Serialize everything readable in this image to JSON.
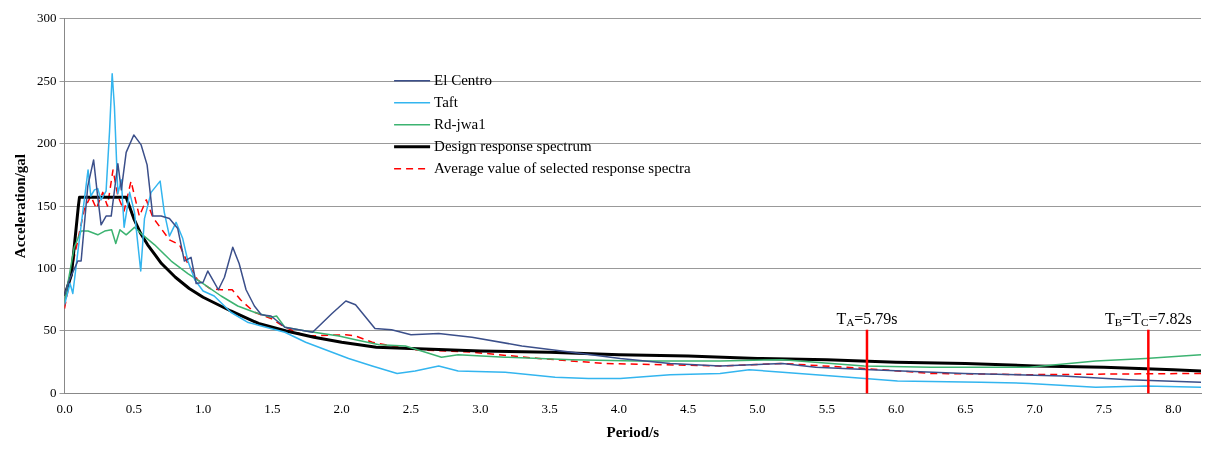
{
  "chart_data": {
    "type": "line",
    "xlabel": "Period/s",
    "ylabel": "Acceleration/gal",
    "xlim": [
      0,
      8.2
    ],
    "ylim": [
      0,
      300
    ],
    "xticks": [
      {
        "value": 0,
        "label": "0.0"
      },
      {
        "value": 0.5,
        "label": "0.5"
      },
      {
        "value": 1,
        "label": "1.0"
      },
      {
        "value": 1.5,
        "label": "1.5"
      },
      {
        "value": 2,
        "label": "2.0"
      },
      {
        "value": 2.5,
        "label": "2.5"
      },
      {
        "value": 3,
        "label": "3.0"
      },
      {
        "value": 3.5,
        "label": "3.5"
      },
      {
        "value": 4,
        "label": "4.0"
      },
      {
        "value": 4.5,
        "label": "4.5"
      },
      {
        "value": 5,
        "label": "5.0"
      },
      {
        "value": 5.5,
        "label": "5.5"
      },
      {
        "value": 6,
        "label": "6.0"
      },
      {
        "value": 6.5,
        "label": "6.5"
      },
      {
        "value": 7,
        "label": "7.0"
      },
      {
        "value": 7.5,
        "label": "7.5"
      },
      {
        "value": 8,
        "label": "8.0"
      }
    ],
    "yticks": [
      0,
      50,
      100,
      150,
      200,
      250,
      300
    ],
    "grid": "y",
    "legend": "top",
    "marker": "none",
    "series": [
      {
        "name": "El Centro",
        "color": "#3b4f8a",
        "line_style": "solid",
        "x": [
          0,
          0.036,
          0.096,
          0.12,
          0.168,
          0.21,
          0.236,
          0.264,
          0.3,
          0.337,
          0.385,
          0.41,
          0.445,
          0.5,
          0.553,
          0.596,
          0.637,
          0.697,
          0.757,
          0.817,
          0.865,
          0.913,
          0.95,
          1.0,
          1.034,
          1.07,
          1.11,
          1.154,
          1.214,
          1.26,
          1.31,
          1.37,
          1.42,
          1.49,
          1.59,
          1.79,
          1.93,
          2.03,
          2.1,
          2.24,
          2.36,
          2.5,
          2.7,
          2.94,
          3.3,
          3.66,
          4.01,
          4.37,
          4.73,
          5.18,
          5.42,
          5.82,
          6.49,
          7.2,
          7.68,
          8.2
        ],
        "values": [
          79,
          91,
          106,
          106,
          166,
          187,
          161,
          135,
          142,
          142,
          184,
          163,
          193,
          207,
          199,
          183,
          142,
          142,
          140,
          132,
          106,
          109,
          88,
          89,
          98,
          91,
          83,
          93,
          117,
          104,
          83,
          70,
          63,
          62,
          53,
          49,
          64,
          74,
          71,
          52,
          51,
          47,
          48,
          45,
          38,
          33,
          28,
          24,
          22,
          24,
          21,
          19,
          16,
          14,
          11,
          9
        ]
      },
      {
        "name": "Taft",
        "color": "#33b5ef",
        "line_style": "solid",
        "x": [
          0,
          0.04,
          0.06,
          0.108,
          0.17,
          0.19,
          0.216,
          0.24,
          0.264,
          0.3,
          0.325,
          0.344,
          0.36,
          0.385,
          0.41,
          0.43,
          0.47,
          0.505,
          0.55,
          0.577,
          0.625,
          0.69,
          0.72,
          0.757,
          0.805,
          0.853,
          0.89,
          0.94,
          1.0,
          1.08,
          1.2,
          1.32,
          1.42,
          1.59,
          1.74,
          2.05,
          2.22,
          2.4,
          2.53,
          2.7,
          2.84,
          3.18,
          3.54,
          3.78,
          4.01,
          4.37,
          4.73,
          4.94,
          5.18,
          5.54,
          6.01,
          6.61,
          6.96,
          7.44,
          7.8,
          8.2
        ],
        "values": [
          71,
          88,
          80,
          124,
          179,
          158,
          163,
          164,
          155,
          162,
          210,
          256,
          230,
          160,
          171,
          133,
          161,
          145,
          98,
          140,
          161,
          170,
          145,
          126,
          137,
          124,
          106,
          91,
          82,
          78,
          65,
          57,
          54,
          49,
          41,
          28,
          22,
          16,
          18,
          22,
          18,
          17,
          13,
          12,
          12,
          15,
          16,
          19,
          17,
          14,
          10,
          9,
          8,
          5,
          6,
          5
        ]
      },
      {
        "name": "Rd-jwa1",
        "color": "#3cb371",
        "line_style": "solid",
        "x": [
          0,
          0.07,
          0.12,
          0.17,
          0.24,
          0.29,
          0.34,
          0.37,
          0.4,
          0.445,
          0.505,
          0.553,
          0.65,
          0.77,
          0.89,
          1.0,
          1.13,
          1.25,
          1.37,
          1.49,
          1.53,
          1.59,
          1.74,
          1.98,
          2.1,
          2.27,
          2.46,
          2.72,
          2.84,
          3.18,
          3.66,
          4.13,
          4.73,
          5.18,
          5.77,
          6.25,
          6.96,
          7.44,
          7.8,
          8.2
        ],
        "values": [
          73,
          117,
          130,
          130,
          127,
          130,
          131,
          120,
          131,
          127,
          133,
          128,
          119,
          106,
          96,
          88,
          78,
          70,
          65,
          61,
          62,
          53,
          50,
          46,
          43,
          39,
          38,
          29,
          31,
          29,
          27,
          26,
          26,
          27,
          22,
          21,
          21,
          26,
          28,
          31
        ]
      },
      {
        "name": "Design response spectrum",
        "color": "#000000",
        "line_style": "solid",
        "x": [
          0,
          0.05,
          0.1,
          0.108,
          0.445,
          0.5,
          0.55,
          0.6,
          0.7,
          0.8,
          0.9,
          1.0,
          1.2,
          1.4,
          1.6,
          1.8,
          2.0,
          2.25,
          2.5,
          3.0,
          3.5,
          4.0,
          4.5,
          5.0,
          5.5,
          6.0,
          6.5,
          7.0,
          7.5,
          8.0,
          8.2
        ],
        "values": [
          78,
          95,
          150,
          157,
          157,
          140,
          128,
          119,
          104,
          93,
          84,
          77,
          66,
          56,
          50,
          45,
          41,
          37,
          36,
          34,
          33,
          31,
          30,
          28,
          27,
          25,
          24,
          22,
          21,
          19,
          18
        ]
      },
      {
        "name": "Average value of selected response spectra",
        "color": "#ff0000",
        "line_style": "dashed",
        "x": [
          0,
          0.07,
          0.144,
          0.19,
          0.23,
          0.276,
          0.31,
          0.35,
          0.385,
          0.43,
          0.48,
          0.54,
          0.59,
          0.637,
          0.697,
          0.757,
          0.83,
          0.89,
          0.96,
          1.05,
          1.13,
          1.21,
          1.27,
          1.37,
          1.49,
          1.59,
          1.74,
          2.03,
          2.1,
          2.22,
          2.51,
          2.94,
          3.42,
          3.89,
          4.73,
          5.18,
          5.77,
          6.25,
          6.96,
          8.2
        ],
        "values": [
          68,
          109,
          148,
          158,
          148,
          161,
          150,
          179,
          158,
          146,
          170,
          142,
          155,
          141,
          132,
          123,
          119,
          104,
          91,
          84,
          83,
          83,
          75,
          65,
          60,
          53,
          46,
          47,
          46,
          41,
          35,
          33,
          28,
          24,
          22,
          24,
          20,
          16,
          15,
          16
        ]
      }
    ],
    "ref_lines": [
      {
        "axis": "x",
        "value": 5.79,
        "label": "T$_{A}$=5.79s",
        "color": "#ff0000"
      },
      {
        "axis": "x",
        "value": 7.82,
        "label": "T$_{B}$=T$_{C}$=7.82s",
        "color": "#ff0000"
      }
    ]
  }
}
